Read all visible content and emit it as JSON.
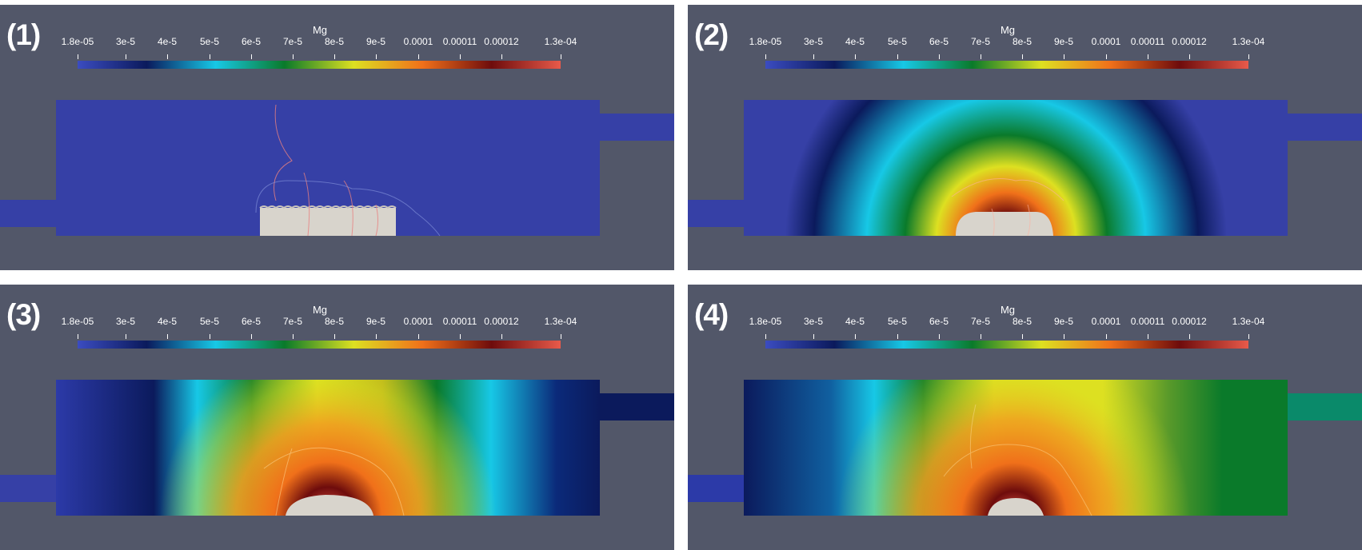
{
  "colorbar": {
    "variable": "Mg",
    "ticks": [
      "1.8e-05",
      "3e-5",
      "4e-5",
      "5e-5",
      "6e-5",
      "7e-5",
      "8e-5",
      "9e-5",
      "0.0001",
      "0.00011",
      "0.00012",
      "1.3e-04"
    ],
    "colors": [
      "#3b4cc0",
      "#0b1a5c",
      "#17c8e6",
      "#0a7a2a",
      "#dde021",
      "#f0701a",
      "#6e0c0c",
      "#e85a4a"
    ]
  },
  "panels": [
    {
      "label": "(1)"
    },
    {
      "label": "(2)"
    },
    {
      "label": "(3)"
    },
    {
      "label": "(4)"
    }
  ],
  "colors": {
    "background": "#525769",
    "low_concentration": "#3640a6",
    "sample": "#d8d4cc"
  }
}
